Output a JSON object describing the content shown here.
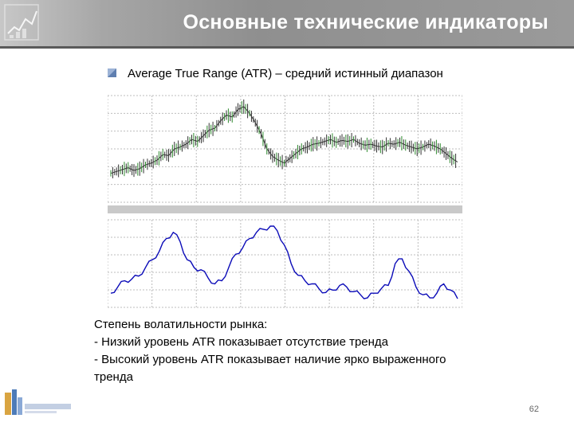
{
  "slide": {
    "title": "Основные технические индикаторы",
    "subtitle": "Average True Range (ATR) – средний истинный диапазон",
    "description": [
      "Степень волатильности рынка:",
      "- Низкий уровень ATR показывает отсутствие тренда",
      "- Высокий уровень ATR показывает наличие ярко выраженного",
      "тренда"
    ],
    "page_number": "62",
    "colors": {
      "header": "#9a9a9a",
      "price_up": "#2e8b2e",
      "price": "#333333",
      "atr_line": "#0b0bb8",
      "separator": "#c9c9c9"
    },
    "icons": [
      "chart-logo-icon",
      "bullet-square-icon",
      "company-logo-icon"
    ]
  },
  "chart_data": [
    {
      "type": "line",
      "series": [
        {
          "values": [
            0.24,
            0.26,
            0.28,
            0.3,
            0.27,
            0.29,
            0.33,
            0.35,
            0.38,
            0.44,
            0.43,
            0.5,
            0.52,
            0.55,
            0.6,
            0.58,
            0.64,
            0.7,
            0.72,
            0.8,
            0.86,
            0.84,
            0.92,
            0.95,
            0.88,
            0.78,
            0.66,
            0.5,
            0.42,
            0.38,
            0.35,
            0.4,
            0.45,
            0.5,
            0.52,
            0.55,
            0.56,
            0.58,
            0.6,
            0.57,
            0.59,
            0.58,
            0.6,
            0.56,
            0.54,
            0.55,
            0.53,
            0.52,
            0.56,
            0.55,
            0.57,
            0.54,
            0.52,
            0.5,
            0.52,
            0.55,
            0.53,
            0.5,
            0.45,
            0.4,
            0.36
          ]
        }
      ],
      "grid": true
    },
    {
      "type": "line",
      "series": [
        {
          "values": [
            0.12,
            0.2,
            0.28,
            0.3,
            0.34,
            0.45,
            0.55,
            0.66,
            0.82,
            0.9,
            0.78,
            0.55,
            0.45,
            0.42,
            0.32,
            0.24,
            0.28,
            0.45,
            0.62,
            0.7,
            0.82,
            0.9,
            0.94,
            0.98,
            0.92,
            0.74,
            0.5,
            0.35,
            0.28,
            0.24,
            0.18,
            0.13,
            0.16,
            0.22,
            0.2,
            0.14,
            0.1,
            0.06,
            0.12,
            0.18,
            0.22,
            0.5,
            0.56,
            0.4,
            0.2,
            0.1,
            0.06,
            0.12,
            0.24,
            0.16,
            0.05
          ]
        }
      ],
      "grid": true
    }
  ]
}
